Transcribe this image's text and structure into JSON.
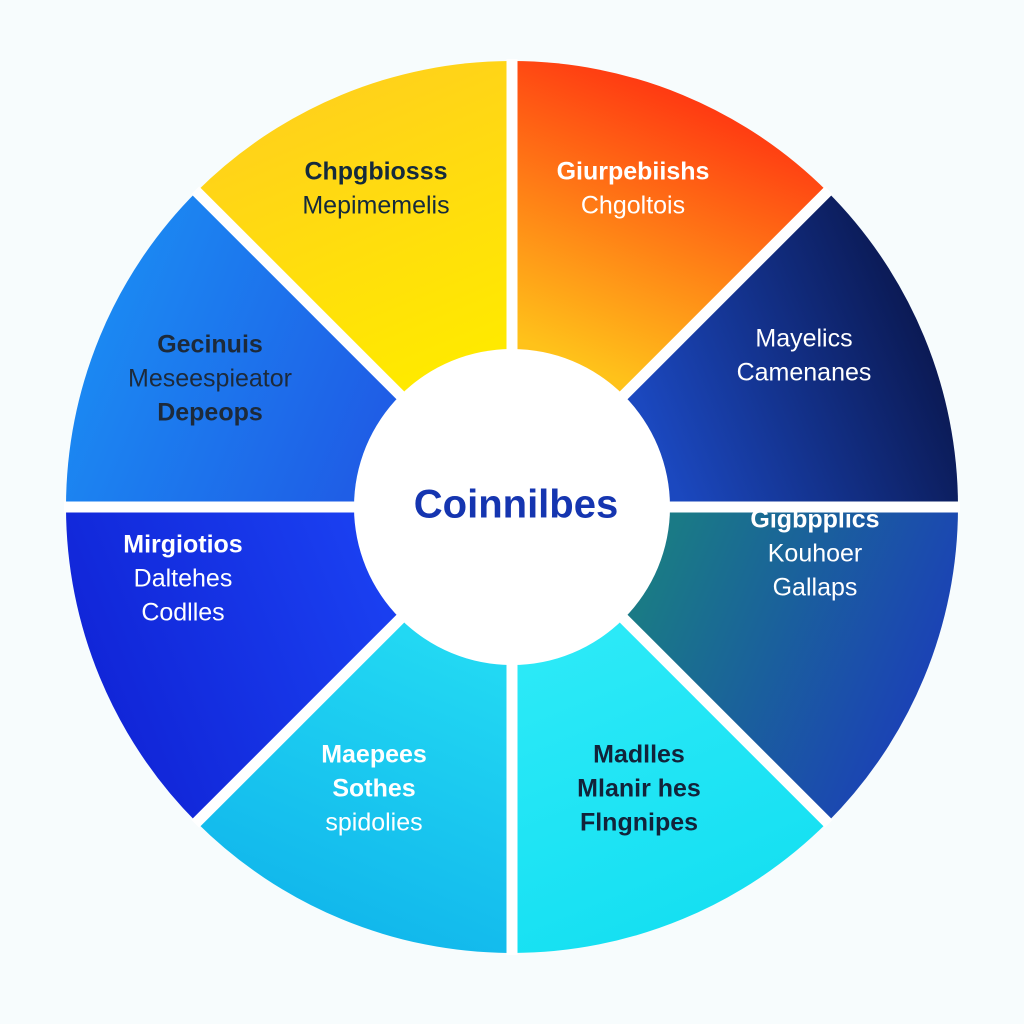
{
  "center": {
    "label": "Coinnilbes",
    "label_color": "#1535b0",
    "fill": "#ffffff"
  },
  "separator_color": "#ffffff",
  "segments": [
    {
      "id": "red-orange",
      "colors": [
        "#ff3a12",
        "#ffc21a"
      ],
      "text_color": "#142a3c",
      "lines": [
        {
          "text": "Chpgbiosss",
          "bold": true
        },
        {
          "text": "Mepimemelis",
          "bold": false
        }
      ]
    },
    {
      "id": "navy",
      "colors": [
        "#0b1a55",
        "#1b48bf"
      ],
      "text_color": "#ffffff",
      "lines": [
        {
          "text": "Giurpebiishs",
          "bold": true
        },
        {
          "text": "Chgoltois",
          "bold": false
        }
      ]
    },
    {
      "id": "blue-teal",
      "colors": [
        "#1b43b5",
        "#1a7a86"
      ],
      "text_color": "#ffffff",
      "lines": [
        {
          "text": "Mayelics",
          "bold": false
        },
        {
          "text": "Camenanes",
          "bold": false
        }
      ]
    },
    {
      "id": "cyan",
      "colors": [
        "#16e0f2",
        "#2be9f7"
      ],
      "text_color": "#ffffff",
      "lines": [
        {
          "text": "Gigbpplics",
          "bold": true
        },
        {
          "text": "Kouhoer",
          "bold": false
        },
        {
          "text": "Gallaps",
          "bold": false
        }
      ]
    },
    {
      "id": "light-cyan",
      "colors": [
        "#12b8ec",
        "#22d8f3"
      ],
      "text_color": "#12233a",
      "lines": [
        {
          "text": "Madlles",
          "bold": true
        },
        {
          "text": "Mlanir hes",
          "bold": true
        },
        {
          "text": "Flngnipes",
          "bold": true
        }
      ]
    },
    {
      "id": "royal-blue",
      "colors": [
        "#1126d8",
        "#1a3ff0"
      ],
      "text_color": "#ffffff",
      "lines": [
        {
          "text": "Maepees",
          "bold": true
        },
        {
          "text": "Sothes",
          "bold": true
        },
        {
          "text": "spidolies",
          "bold": false
        }
      ]
    },
    {
      "id": "sky-blue",
      "colors": [
        "#1b88f2",
        "#1f5ee6"
      ],
      "text_color": "#ffffff",
      "lines": [
        {
          "text": "Mirgiotios",
          "bold": true
        },
        {
          "text": "Daltehes",
          "bold": false
        },
        {
          "text": "Codlles",
          "bold": false
        }
      ]
    },
    {
      "id": "yellow",
      "colors": [
        "#ffd21a",
        "#ffe900"
      ],
      "text_color": "#1d2a3a",
      "lines": [
        {
          "text": "Gecinuis",
          "bold": true
        },
        {
          "text": "Meseespieator",
          "bold": false
        },
        {
          "text": "Depeops",
          "bold": true
        }
      ]
    }
  ]
}
